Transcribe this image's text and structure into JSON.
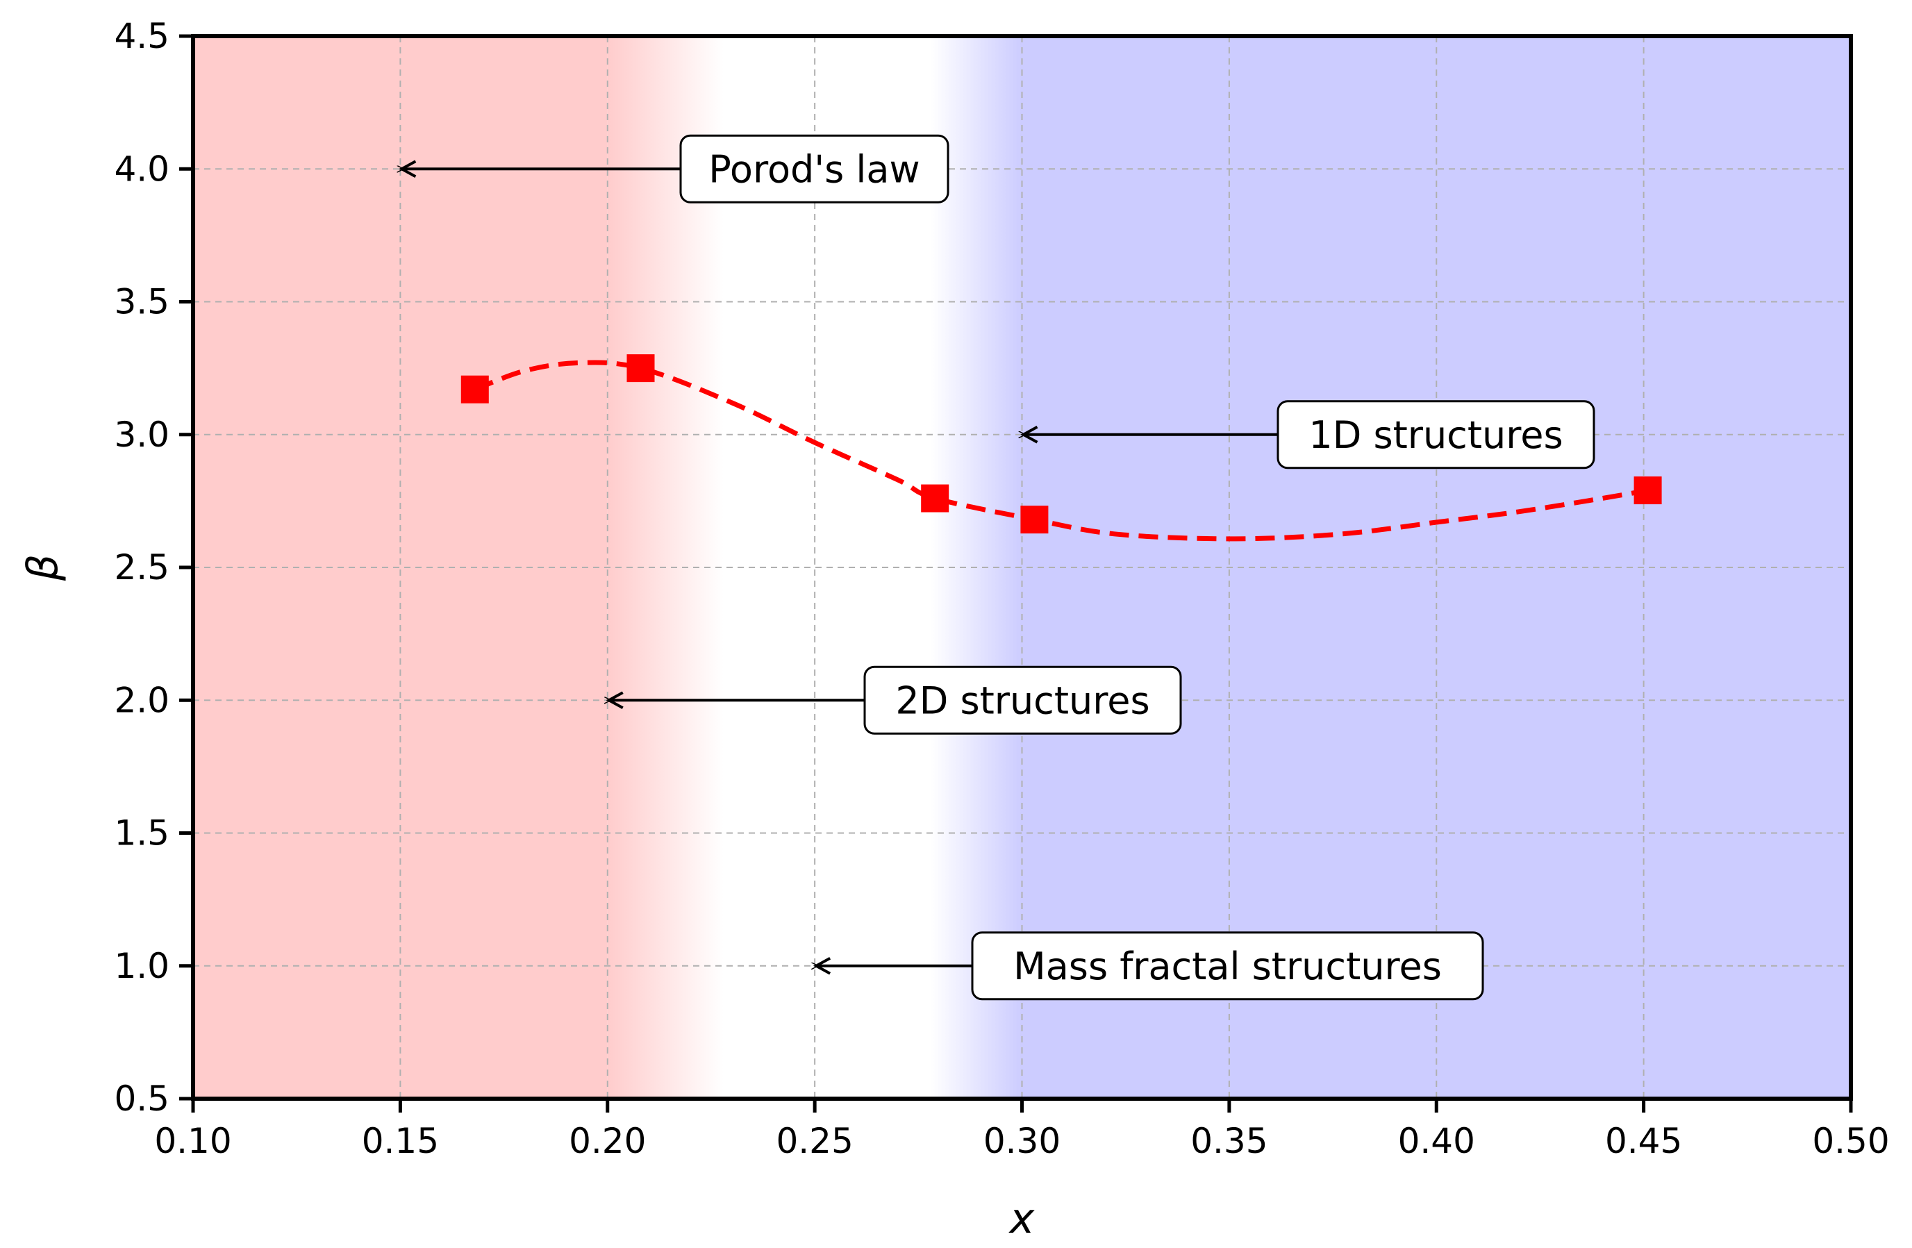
{
  "chart_data": {
    "type": "line",
    "xlabel": "x",
    "ylabel": "β",
    "xlim": [
      0.1,
      0.5
    ],
    "ylim": [
      0.5,
      4.5
    ],
    "xticks": [
      "0.10",
      "0.15",
      "0.20",
      "0.25",
      "0.30",
      "0.35",
      "0.40",
      "0.45",
      "0.50"
    ],
    "yticks": [
      "0.5",
      "1.0",
      "1.5",
      "2.0",
      "2.5",
      "3.0",
      "3.5",
      "4.0",
      "4.5"
    ],
    "grid": true,
    "series": [
      {
        "color": "#ff0000",
        "marker": "square",
        "line_style": "dashed",
        "x": [
          0.168,
          0.208,
          0.279,
          0.303,
          0.451
        ],
        "y": [
          3.17,
          3.25,
          2.76,
          2.68,
          2.79
        ]
      }
    ],
    "fit_curve": [
      [
        0.168,
        3.17
      ],
      [
        0.18,
        3.24
      ],
      [
        0.193,
        3.27
      ],
      [
        0.208,
        3.25
      ],
      [
        0.23,
        3.12
      ],
      [
        0.25,
        2.97
      ],
      [
        0.27,
        2.83
      ],
      [
        0.279,
        2.76
      ],
      [
        0.303,
        2.68
      ],
      [
        0.32,
        2.63
      ],
      [
        0.34,
        2.61
      ],
      [
        0.36,
        2.61
      ],
      [
        0.38,
        2.63
      ],
      [
        0.4,
        2.67
      ],
      [
        0.42,
        2.71
      ],
      [
        0.44,
        2.76
      ],
      [
        0.451,
        2.79
      ]
    ],
    "regions": [
      {
        "from_x": 0.1,
        "solid_to_x": 0.2,
        "fade_to_x": 0.228,
        "color": "#ffcccc"
      },
      {
        "fade_from_x": 0.278,
        "solid_from_x": 0.3,
        "to_x": 0.5,
        "color": "#ccccff"
      }
    ],
    "annotations": [
      {
        "text": "Porod's law",
        "point": [
          0.15,
          4.0
        ]
      },
      {
        "text": "1D structures",
        "point": [
          0.3,
          3.0
        ]
      },
      {
        "text": "2D structures",
        "point": [
          0.2,
          2.0
        ]
      },
      {
        "text": "Mass fractal structures",
        "point": [
          0.25,
          1.0
        ]
      }
    ]
  }
}
